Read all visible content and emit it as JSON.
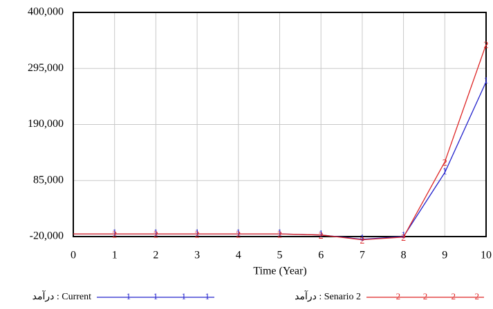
{
  "chart_data": {
    "type": "line",
    "x": [
      0,
      1,
      2,
      3,
      4,
      5,
      6,
      7,
      8,
      9,
      10
    ],
    "xlim": [
      0,
      10
    ],
    "xticks": [
      0,
      1,
      2,
      3,
      4,
      5,
      6,
      7,
      8,
      9,
      10
    ],
    "ylim": [
      -20000,
      400000
    ],
    "yticks": [
      {
        "value": -20000,
        "label": "-20,000"
      },
      {
        "value": 85000,
        "label": "85,000"
      },
      {
        "value": 190000,
        "label": "190,000"
      },
      {
        "value": 295000,
        "label": "295,000"
      },
      {
        "value": 400000,
        "label": "400,000"
      }
    ],
    "x_label": "Time (Year)",
    "grid": true,
    "series": [
      {
        "name": "درآمد : Current",
        "marker": "1",
        "color": "#2222cc",
        "values": [
          -15000,
          -15000,
          -15000,
          -15000,
          -15000,
          -15000,
          -17000,
          -25000,
          -20000,
          100000,
          270000
        ]
      },
      {
        "name": "درآمد : Senario 2",
        "marker": "2",
        "color": "#dd2222",
        "values": [
          -15000,
          -15000,
          -15000,
          -15000,
          -15000,
          -15000,
          -17000,
          -26000,
          -21000,
          120000,
          340000
        ]
      }
    ]
  }
}
